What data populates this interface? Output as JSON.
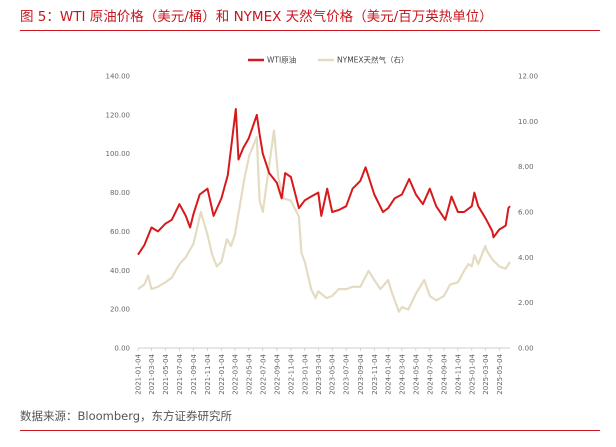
{
  "figure": {
    "title": "图 5：WTI 原油价格（美元/桶）和 NYMEX 天然气价格（美元/百万英热单位）",
    "source": "数据来源：Bloomberg，东方证券研究所"
  },
  "colors": {
    "wti": "#d7191c",
    "gas": "#e4dcc2",
    "title_red": "#c8151d"
  },
  "chart_data": {
    "type": "line",
    "legend_position": "top-center",
    "grid": false,
    "x_ticks": [
      "2021-01-04",
      "2021-03-04",
      "2021-05-04",
      "2021-07-04",
      "2021-09-04",
      "2021-11-04",
      "2022-01-04",
      "2022-03-04",
      "2022-05-04",
      "2022-07-04",
      "2022-09-04",
      "2022-11-04",
      "2023-01-04",
      "2023-03-04",
      "2023-05-04",
      "2023-07-04",
      "2023-09-04",
      "2023-11-04",
      "2024-01-04",
      "2024-03-04",
      "2024-05-04",
      "2024-07-04",
      "2024-09-04",
      "2024-11-04",
      "2025-01-04",
      "2025-03-04",
      "2025-05-04"
    ],
    "x_range": [
      "2021-01-04",
      "2025-06-20"
    ],
    "y_left": {
      "min": 0,
      "max": 140,
      "ticks": [
        "0.00",
        "20.00",
        "40.00",
        "60.00",
        "80.00",
        "100.00",
        "120.00",
        "140.00"
      ]
    },
    "y_right": {
      "min": 0,
      "max": 12,
      "ticks": [
        "0.00",
        "2.00",
        "4.00",
        "6.00",
        "8.00",
        "10.00",
        "12.00"
      ]
    },
    "series": [
      {
        "name": "WTI原油",
        "axis": "left",
        "x": [
          "2021-01-04",
          "2021-02-01",
          "2021-03-04",
          "2021-04-01",
          "2021-05-04",
          "2021-06-01",
          "2021-07-04",
          "2021-08-01",
          "2021-08-20",
          "2021-09-04",
          "2021-10-01",
          "2021-11-04",
          "2021-12-01",
          "2022-01-04",
          "2022-02-01",
          "2022-03-08",
          "2022-03-20",
          "2022-04-10",
          "2022-05-04",
          "2022-06-08",
          "2022-06-20",
          "2022-07-04",
          "2022-08-01",
          "2022-09-04",
          "2022-09-25",
          "2022-10-10",
          "2022-11-04",
          "2022-12-09",
          "2023-01-04",
          "2023-02-01",
          "2023-03-04",
          "2023-03-17",
          "2023-04-12",
          "2023-05-04",
          "2023-06-01",
          "2023-07-04",
          "2023-08-01",
          "2023-09-04",
          "2023-09-27",
          "2023-11-04",
          "2023-12-12",
          "2024-01-04",
          "2024-02-01",
          "2024-03-04",
          "2024-04-05",
          "2024-05-04",
          "2024-06-04",
          "2024-07-04",
          "2024-08-01",
          "2024-09-10",
          "2024-10-07",
          "2024-11-04",
          "2024-12-01",
          "2025-01-04",
          "2025-01-15",
          "2025-02-01",
          "2025-03-04",
          "2025-04-04",
          "2025-04-09",
          "2025-05-04",
          "2025-06-01",
          "2025-06-13",
          "2025-06-20"
        ],
        "y": [
          48,
          53,
          62,
          60,
          64,
          66,
          74,
          68,
          62,
          69,
          79,
          82,
          68,
          77,
          89,
          123,
          97,
          103,
          108,
          120,
          110,
          100,
          90,
          85,
          77,
          90,
          88,
          72,
          76,
          78,
          80,
          68,
          82,
          70,
          71,
          73,
          82,
          86,
          93,
          79,
          70,
          72,
          77,
          79,
          87,
          79,
          74,
          82,
          73,
          66,
          78,
          70,
          70,
          73,
          80,
          73,
          67,
          60,
          57,
          61,
          63,
          72,
          73
        ]
      },
      {
        "name": "NYMEX天然气（右）",
        "axis": "right",
        "x": [
          "2021-01-04",
          "2021-02-01",
          "2021-02-17",
          "2021-03-04",
          "2021-04-01",
          "2021-05-04",
          "2021-06-01",
          "2021-07-04",
          "2021-08-01",
          "2021-09-04",
          "2021-10-06",
          "2021-11-04",
          "2021-11-25",
          "2021-12-15",
          "2022-01-04",
          "2022-01-28",
          "2022-02-15",
          "2022-03-04",
          "2022-04-15",
          "2022-05-06",
          "2022-06-08",
          "2022-06-20",
          "2022-07-04",
          "2022-08-22",
          "2022-09-10",
          "2022-10-04",
          "2022-11-04",
          "2022-12-09",
          "2022-12-20",
          "2023-01-04",
          "2023-02-01",
          "2023-02-20",
          "2023-03-04",
          "2023-04-10",
          "2023-05-04",
          "2023-06-01",
          "2023-07-04",
          "2023-08-01",
          "2023-09-04",
          "2023-10-10",
          "2023-11-04",
          "2023-12-01",
          "2024-01-04",
          "2024-01-18",
          "2024-02-20",
          "2024-03-04",
          "2024-04-01",
          "2024-05-04",
          "2024-06-10",
          "2024-07-04",
          "2024-08-01",
          "2024-09-04",
          "2024-10-01",
          "2024-11-04",
          "2024-12-01",
          "2024-12-20",
          "2025-01-04",
          "2025-01-15",
          "2025-02-01",
          "2025-03-04",
          "2025-03-10",
          "2025-04-04",
          "2025-05-04",
          "2025-06-01",
          "2025-06-20"
        ],
        "y": [
          2.6,
          2.8,
          3.2,
          2.6,
          2.7,
          2.9,
          3.1,
          3.7,
          4.0,
          4.6,
          6.0,
          5.0,
          4.1,
          3.6,
          3.8,
          4.8,
          4.5,
          5.0,
          7.5,
          8.5,
          9.3,
          6.5,
          6.0,
          9.6,
          7.5,
          6.6,
          6.5,
          5.8,
          4.2,
          3.8,
          2.6,
          2.2,
          2.5,
          2.2,
          2.3,
          2.6,
          2.6,
          2.7,
          2.7,
          3.4,
          3.0,
          2.6,
          3.0,
          2.5,
          1.6,
          1.8,
          1.7,
          2.4,
          3.0,
          2.3,
          2.1,
          2.3,
          2.8,
          2.9,
          3.4,
          3.7,
          3.6,
          4.1,
          3.7,
          4.5,
          4.3,
          3.9,
          3.6,
          3.5,
          3.8
        ]
      }
    ]
  }
}
